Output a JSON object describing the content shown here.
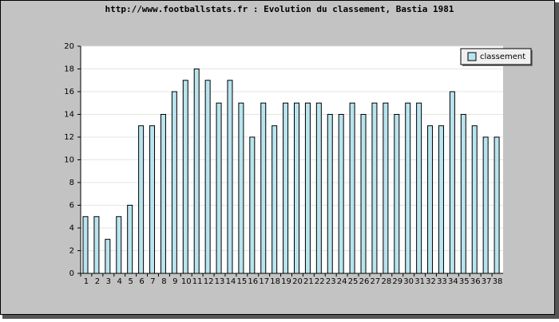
{
  "chart_data": {
    "type": "bar",
    "title": "http://www.footballstats.fr : Evolution du classement, Bastia 1981",
    "categories": [
      "1",
      "2",
      "3",
      "4",
      "5",
      "6",
      "7",
      "8",
      "9",
      "10",
      "11",
      "12",
      "13",
      "14",
      "15",
      "16",
      "17",
      "18",
      "19",
      "20",
      "21",
      "22",
      "23",
      "24",
      "25",
      "26",
      "27",
      "28",
      "29",
      "30",
      "31",
      "32",
      "33",
      "34",
      "35",
      "36",
      "37",
      "38"
    ],
    "series": [
      {
        "name": "classement",
        "color": "#b8e4ee",
        "values": [
          5,
          5,
          3,
          5,
          6,
          13,
          13,
          14,
          16,
          17,
          18,
          17,
          15,
          17,
          15,
          12,
          15,
          13,
          15,
          15,
          15,
          15,
          14,
          14,
          15,
          14,
          15,
          15,
          14,
          15,
          15,
          13,
          13,
          16,
          14,
          13,
          12,
          12
        ]
      }
    ],
    "ylim": [
      0,
      20
    ],
    "yticks": [
      0,
      2,
      4,
      6,
      8,
      10,
      12,
      14,
      16,
      18,
      20
    ],
    "grid": true,
    "legend": "top-right"
  }
}
